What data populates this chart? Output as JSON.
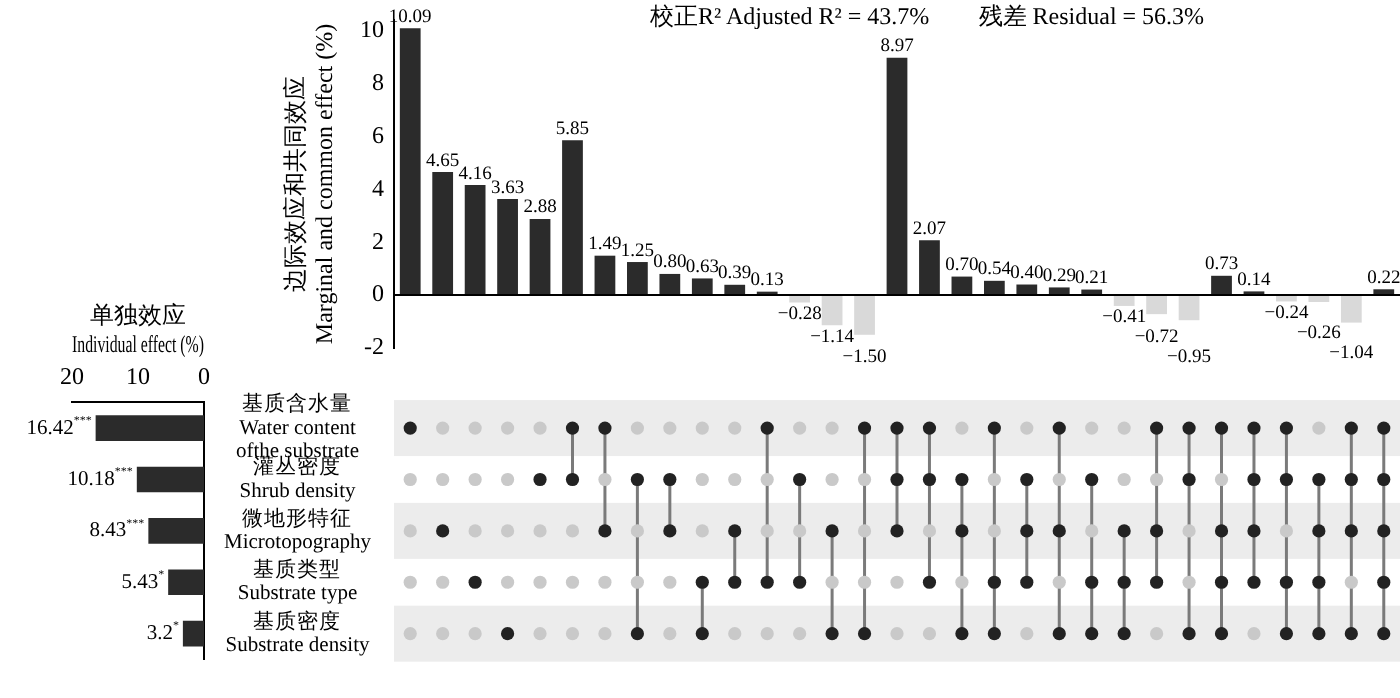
{
  "chart_data": [
    {
      "type": "bar",
      "ylabel": "边际效应和共同效应\nMarginal and common effect (%)",
      "categories": [
        null,
        null,
        null,
        null,
        null,
        null,
        null,
        null,
        null,
        null,
        null,
        null,
        null,
        null,
        null,
        null,
        null,
        null,
        null,
        null,
        null,
        null,
        null,
        null,
        null,
        null,
        null,
        null,
        null,
        null,
        null
      ],
      "values": [
        10.09,
        4.65,
        4.16,
        3.63,
        2.88,
        5.85,
        1.49,
        1.25,
        0.8,
        0.63,
        0.39,
        0.13,
        -0.28,
        -1.14,
        -1.5,
        8.97,
        2.07,
        0.7,
        0.54,
        0.4,
        0.29,
        0.21,
        -0.41,
        -0.72,
        -0.95,
        0.73,
        0.14,
        -0.24,
        -0.26,
        -1.04,
        0.22
      ],
      "value_labels": [
        "10.09",
        "4.65",
        "4.16",
        "3.63",
        "2.88",
        "5.85",
        "1.49",
        "1.25",
        "0.80",
        "0.63",
        "0.39",
        "0.13",
        "−0.28",
        "−1.14",
        "−1.50",
        "8.97",
        "2.07",
        "0.70",
        "0.54",
        "0.40",
        "0.29",
        "0.21",
        "−0.41",
        "−0.72",
        "−0.95",
        "0.73",
        "0.14",
        "−0.24",
        "−0.26",
        "−1.04",
        "0.22"
      ],
      "colors": [
        "#2b2b2b",
        "#2b2b2b",
        "#2b2b2b",
        "#2b2b2b",
        "#2b2b2b",
        "#2b2b2b",
        "#2b2b2b",
        "#2b2b2b",
        "#2b2b2b",
        "#2b2b2b",
        "#2b2b2b",
        "#2b2b2b",
        "#d9d9d9",
        "#d9d9d9",
        "#d9d9d9",
        "#2b2b2b",
        "#2b2b2b",
        "#2b2b2b",
        "#2b2b2b",
        "#2b2b2b",
        "#2b2b2b",
        "#2b2b2b",
        "#d9d9d9",
        "#d9d9d9",
        "#d9d9d9",
        "#2b2b2b",
        "#2b2b2b",
        "#d9d9d9",
        "#d9d9d9",
        "#d9d9d9",
        "#2b2b2b"
      ],
      "ylim": [
        -2,
        10.4
      ],
      "yticks": [
        -2,
        0,
        2,
        4,
        6,
        8,
        10
      ],
      "annotations": [
        "校正R² Adjusted R² = 43.7%",
        "残差 Residual = 56.3%"
      ]
    },
    {
      "type": "bar",
      "orientation": "horizontal",
      "xlabel": "单独效应\nIndividual effect (%)",
      "categories": [
        "基质含水量\nWater content\nofthe substrate",
        "灌丛密度\nShrub density",
        "微地形特征\nMicrotopography",
        "基质类型\nSubstrate type",
        "基质密度\nSubstrate density"
      ],
      "values": [
        16.42,
        10.18,
        8.43,
        5.43,
        3.2
      ],
      "value_labels": [
        "16.42$^{***}$",
        "10.18$^{***}$",
        "8.43$^{***}$",
        "5.43$^{*}$",
        "3.2$^{*}$"
      ],
      "color": "#2b2b2b",
      "xlim": [
        20,
        0
      ],
      "xticks": [
        20,
        10,
        0
      ]
    }
  ]
}
